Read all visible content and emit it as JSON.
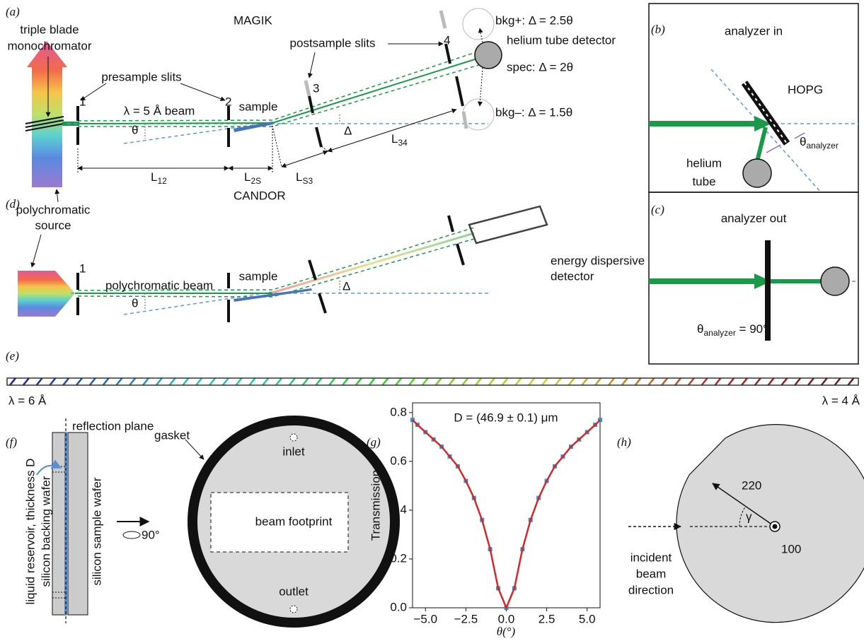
{
  "panel_labels": {
    "a": "(a)",
    "b": "(b)",
    "c": "(c)",
    "d": "(d)",
    "e": "(e)",
    "f": "(f)",
    "g": "(g)",
    "h": "(h)"
  },
  "magik": {
    "title": "MAGIK",
    "monochromator": [
      "triple blade",
      "monochromator"
    ],
    "presample_slits": "presample slits",
    "postsample_slits": "postsample slits",
    "beam": "λ = 5 Å beam",
    "sample": "sample",
    "theta": "θ",
    "delta": "Δ",
    "slits": [
      "1",
      "2",
      "3",
      "4"
    ],
    "distances": [
      {
        "L": "L",
        "sub": "12"
      },
      {
        "L": "L",
        "sub": "2S"
      },
      {
        "L": "L",
        "sub": "S3"
      },
      {
        "L": "L",
        "sub": "34"
      }
    ],
    "bkg_plus": "bkg+: Δ = 2.5θ",
    "detector": "helium tube detector",
    "spec": "spec: Δ = 2θ",
    "bkg_minus": "bkg–: Δ = 1.5θ",
    "source": [
      "polychromatic",
      "source"
    ]
  },
  "analyzer_in": {
    "title": "analyzer in",
    "crystal": "HOPG",
    "tube": [
      "helium",
      "tube"
    ],
    "angle": {
      "symbol": "θ",
      "sub": "analyzer"
    }
  },
  "analyzer_out": {
    "title": "analyzer out",
    "angle": {
      "symbol": "θ",
      "sub": "analyzer",
      "rest": " = 90°"
    }
  },
  "candor": {
    "title": "CANDOR",
    "beam": "polychromatic beam",
    "sample": "sample",
    "theta": "θ",
    "delta": "Δ",
    "slit": "1",
    "detector": [
      "energy dispersive",
      "detector"
    ]
  },
  "wavelength_bar": {
    "start": "λ = 6 Å",
    "end": "λ = 4 Å"
  },
  "cell": {
    "reflection_plane": "reflection plane",
    "reservoir": "liquid reservoir, thickness D",
    "backing": "silicon backing wafer",
    "sample_wafer": "silicon sample wafer",
    "gasket": "gasket",
    "inlet": "inlet",
    "footprint": "beam footprint",
    "outlet": "outlet",
    "rotation": "90°"
  },
  "chart_data": {
    "type": "line",
    "title": "D = (46.9 ± 0.1) μm",
    "x_label": "θ(°)",
    "y_label": "Transmission",
    "x": [
      -5.8,
      -5.5,
      -5,
      -4.5,
      -4,
      -3.5,
      -3,
      -2.5,
      -2,
      -1.5,
      -1,
      -0.5,
      0,
      0.5,
      1,
      1.5,
      2,
      2.5,
      3,
      3.5,
      4,
      4.5,
      5,
      5.5,
      5.8
    ],
    "values": [
      0.77,
      0.75,
      0.72,
      0.69,
      0.66,
      0.62,
      0.58,
      0.52,
      0.45,
      0.36,
      0.24,
      0.08,
      0.0,
      0.08,
      0.24,
      0.36,
      0.45,
      0.52,
      0.58,
      0.62,
      0.66,
      0.69,
      0.72,
      0.75,
      0.77
    ],
    "color": "#d62728",
    "marker_color": "#3a8fd0",
    "xlim": [
      -5.8,
      5.8
    ],
    "ylim": [
      0,
      0.84
    ],
    "xticks": [
      {
        "value": -5,
        "label": "−5.0"
      },
      {
        "value": -2.5,
        "label": "−2.5"
      },
      {
        "value": 0,
        "label": "0.0"
      },
      {
        "value": 2.5,
        "label": "2.5"
      },
      {
        "value": 5,
        "label": "5.0"
      }
    ],
    "yticks": [
      {
        "value": 0,
        "label": "0.0"
      },
      {
        "value": 0.2,
        "label": "0.2"
      },
      {
        "value": 0.4,
        "label": "0.4"
      },
      {
        "value": 0.6,
        "label": "0.6"
      },
      {
        "value": 0.8,
        "label": "0.8"
      }
    ]
  },
  "sample_shape": {
    "radius": "220",
    "angle": "γ",
    "hole": "100",
    "incident": [
      "incident",
      "beam",
      "direction"
    ]
  }
}
